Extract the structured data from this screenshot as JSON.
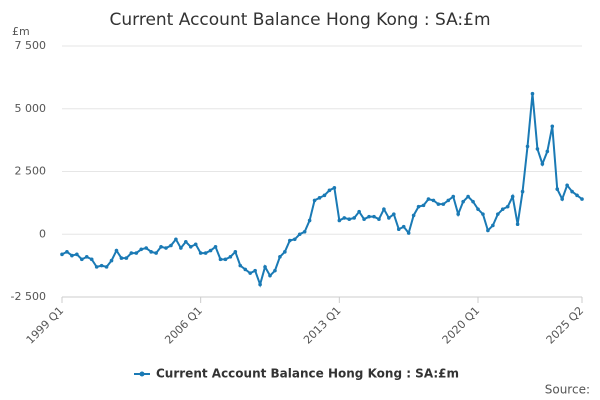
{
  "chart_data": {
    "type": "line",
    "title": "Current Account Balance Hong Kong : SA:£m",
    "y_label": "£m",
    "source": "Source:",
    "categories": [
      "1999 Q1",
      null,
      null,
      null,
      null,
      null,
      null,
      null,
      null,
      null,
      null,
      null,
      null,
      null,
      null,
      null,
      null,
      null,
      null,
      null,
      null,
      null,
      null,
      null,
      null,
      null,
      null,
      null,
      "2006 Q1",
      null,
      null,
      null,
      null,
      null,
      null,
      null,
      null,
      null,
      null,
      null,
      null,
      null,
      null,
      null,
      null,
      null,
      null,
      null,
      null,
      null,
      null,
      null,
      null,
      null,
      null,
      null,
      "2013 Q1",
      null,
      null,
      null,
      null,
      null,
      null,
      null,
      null,
      null,
      null,
      null,
      null,
      null,
      null,
      null,
      null,
      null,
      null,
      null,
      null,
      null,
      null,
      null,
      null,
      null,
      null,
      null,
      "2020 Q1",
      null,
      null,
      null,
      null,
      null,
      null,
      null,
      null,
      null,
      null,
      null,
      null,
      null,
      null,
      null,
      null,
      null,
      null,
      null,
      null,
      "2025 Q2"
    ],
    "series": [
      {
        "name": "Current Account Balance Hong Kong : SA:£m",
        "color": "#1a7ab5",
        "values": [
          -800,
          -700,
          -850,
          -800,
          -1000,
          -900,
          -1000,
          -1300,
          -1250,
          -1300,
          -1050,
          -650,
          -950,
          -950,
          -750,
          -750,
          -600,
          -550,
          -700,
          -750,
          -500,
          -550,
          -450,
          -200,
          -550,
          -300,
          -500,
          -400,
          -750,
          -750,
          -650,
          -500,
          -1000,
          -1000,
          -900,
          -700,
          -1250,
          -1400,
          -1550,
          -1450,
          -2000,
          -1300,
          -1650,
          -1450,
          -900,
          -700,
          -250,
          -200,
          0,
          100,
          550,
          1350,
          1450,
          1550,
          1750,
          1850,
          550,
          650,
          600,
          650,
          900,
          600,
          700,
          700,
          600,
          1000,
          650,
          800,
          200,
          300,
          50,
          750,
          1100,
          1150,
          1400,
          1350,
          1200,
          1200,
          1350,
          1500,
          800,
          1300,
          1500,
          1300,
          1000,
          800,
          150,
          350,
          800,
          1000,
          1100,
          1500,
          400,
          1700,
          3500,
          5600,
          3400,
          2800,
          3300,
          4300,
          1800,
          1400,
          1950,
          1700,
          1550,
          1400
        ]
      }
    ],
    "ylim": [
      -2500,
      7500
    ],
    "yticks": [
      {
        "value": -2500,
        "label": "-2 500"
      },
      0,
      {
        "value": 2500,
        "label": "2 500"
      },
      {
        "value": 5000,
        "label": "5 000"
      },
      {
        "value": 7500,
        "label": "7 500"
      }
    ],
    "grid": true
  }
}
